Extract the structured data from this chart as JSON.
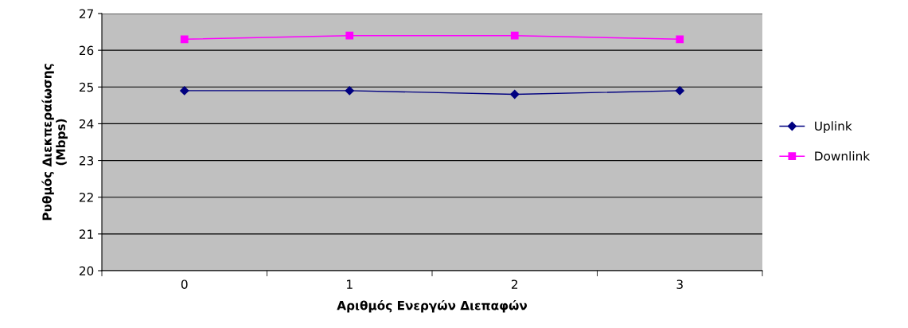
{
  "chart_data": {
    "type": "line",
    "xlabel": "Αριθμός Ενεργών Διεπαφών",
    "ylabel": "Ρυθμός Διεκπεραίωσης\n(Mbps)",
    "categories": [
      "0",
      "1",
      "2",
      "3"
    ],
    "series": [
      {
        "name": "Uplink",
        "color": "#000080",
        "marker": "diamond",
        "values": [
          24.9,
          24.9,
          24.8,
          24.9
        ]
      },
      {
        "name": "Downlink",
        "color": "#ff00ff",
        "marker": "square",
        "values": [
          26.3,
          26.4,
          26.4,
          26.3
        ]
      }
    ],
    "ylim": [
      20,
      27
    ],
    "yticks": [
      20,
      21,
      22,
      23,
      24,
      25,
      26,
      27
    ],
    "grid": "y",
    "legend": "right"
  }
}
